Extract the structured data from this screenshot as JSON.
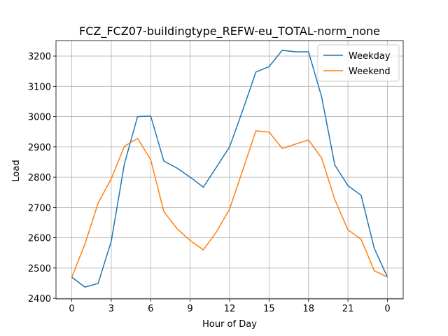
{
  "chart_data": {
    "type": "line",
    "title": "FCZ_FCZ07-buildingtype_REFW-eu_TOTAL-norm_none",
    "xlabel": "Hour of Day",
    "ylabel": "Load",
    "x": [
      0,
      1,
      2,
      3,
      4,
      5,
      6,
      7,
      8,
      9,
      10,
      11,
      12,
      13,
      14,
      15,
      16,
      17,
      18,
      19,
      20,
      21,
      22,
      23,
      24
    ],
    "series": [
      {
        "name": "Weekday",
        "color": "#1f77b4",
        "values": [
          2470,
          2437,
          2449,
          2588,
          2844,
          3000,
          3002,
          2853,
          2830,
          2800,
          2767,
          2833,
          2900,
          3021,
          3147,
          3165,
          3219,
          3214,
          3214,
          3065,
          2840,
          2772,
          2740,
          2565,
          2470
        ]
      },
      {
        "name": "Weekend",
        "color": "#ff7f0e",
        "values": [
          2470,
          2579,
          2714,
          2795,
          2902,
          2928,
          2858,
          2686,
          2630,
          2591,
          2560,
          2619,
          2695,
          2823,
          2953,
          2949,
          2895,
          2909,
          2923,
          2863,
          2726,
          2626,
          2595,
          2491,
          2470
        ]
      }
    ],
    "xlim": [
      -1.2,
      25.2
    ],
    "xticks": [
      0,
      3,
      6,
      9,
      12,
      15,
      18,
      21,
      {
        "value": 24,
        "label": "0"
      }
    ],
    "ylim": [
      2398,
      3251
    ],
    "yticks": [
      2400,
      2500,
      2600,
      2700,
      2800,
      2900,
      3000,
      3100,
      3200
    ],
    "grid": true,
    "legend": "upper right"
  }
}
